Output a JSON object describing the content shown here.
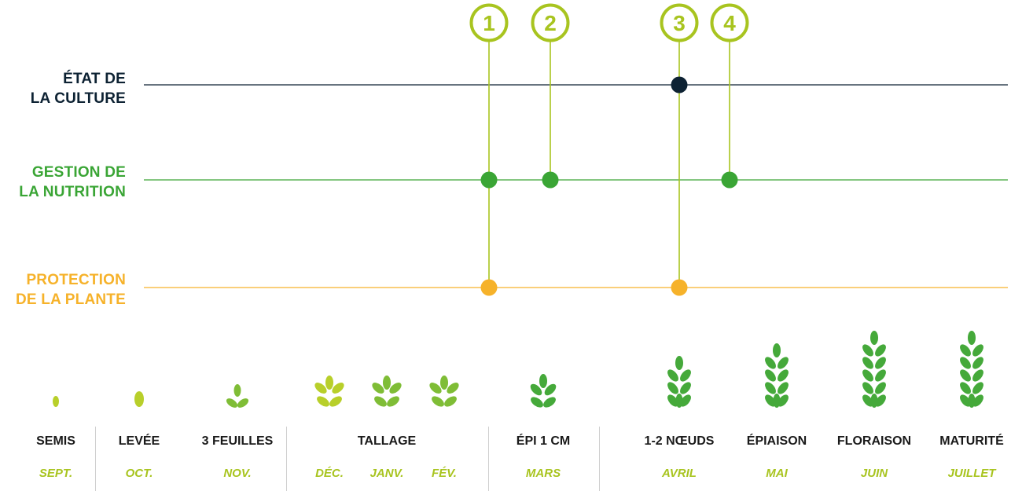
{
  "colors": {
    "culture": "#0d2233",
    "nutrition": "#3aa535",
    "protection": "#f6b22a",
    "marker": "#a8c41f",
    "month": "#a8c41f",
    "plant_light": "#b8cf2a",
    "plant_mid": "#7fbd36",
    "plant_dark": "#45a93a"
  },
  "rows": {
    "culture": {
      "line1": "ÉTAT DE",
      "line2": "LA CULTURE"
    },
    "nutrition": {
      "line1": "GESTION DE",
      "line2": "LA NUTRITION"
    },
    "protection": {
      "line1": "PROTECTION",
      "line2": "DE LA PLANTE"
    }
  },
  "markers": [
    {
      "number": "1",
      "rows": [
        "nutrition",
        "protection"
      ]
    },
    {
      "number": "2",
      "rows": [
        "nutrition"
      ]
    },
    {
      "number": "3",
      "rows": [
        "culture",
        "protection"
      ]
    },
    {
      "number": "4",
      "rows": [
        "nutrition"
      ]
    }
  ],
  "stages": [
    "SEMIS",
    "LEVÉE",
    "3 FEUILLES",
    "TALLAGE",
    "ÉPI 1 CM",
    "1-2 NŒUDS",
    "ÉPIAISON",
    "FLORAISON",
    "MATURITÉ"
  ],
  "months": [
    "SEPT.",
    "OCT.",
    "NOV.",
    "DÉC.",
    "JANV.",
    "FÉV.",
    "MARS",
    "AVRIL",
    "MAI",
    "JUIN",
    "JUILLET"
  ],
  "plants": [
    {
      "month": "SEPT.",
      "stage": "seed-small"
    },
    {
      "month": "OCT.",
      "stage": "seed"
    },
    {
      "month": "NOV.",
      "stage": "three-leaves"
    },
    {
      "month": "DÉC.",
      "stage": "tillering"
    },
    {
      "month": "JANV.",
      "stage": "tillering"
    },
    {
      "month": "FÉV.",
      "stage": "tillering"
    },
    {
      "month": "MARS",
      "stage": "ear-1cm"
    },
    {
      "month": "AVRIL",
      "stage": "nodes"
    },
    {
      "month": "MAI",
      "stage": "heading"
    },
    {
      "month": "JUIN",
      "stage": "flowering"
    },
    {
      "month": "JUILLET",
      "stage": "maturity"
    }
  ]
}
